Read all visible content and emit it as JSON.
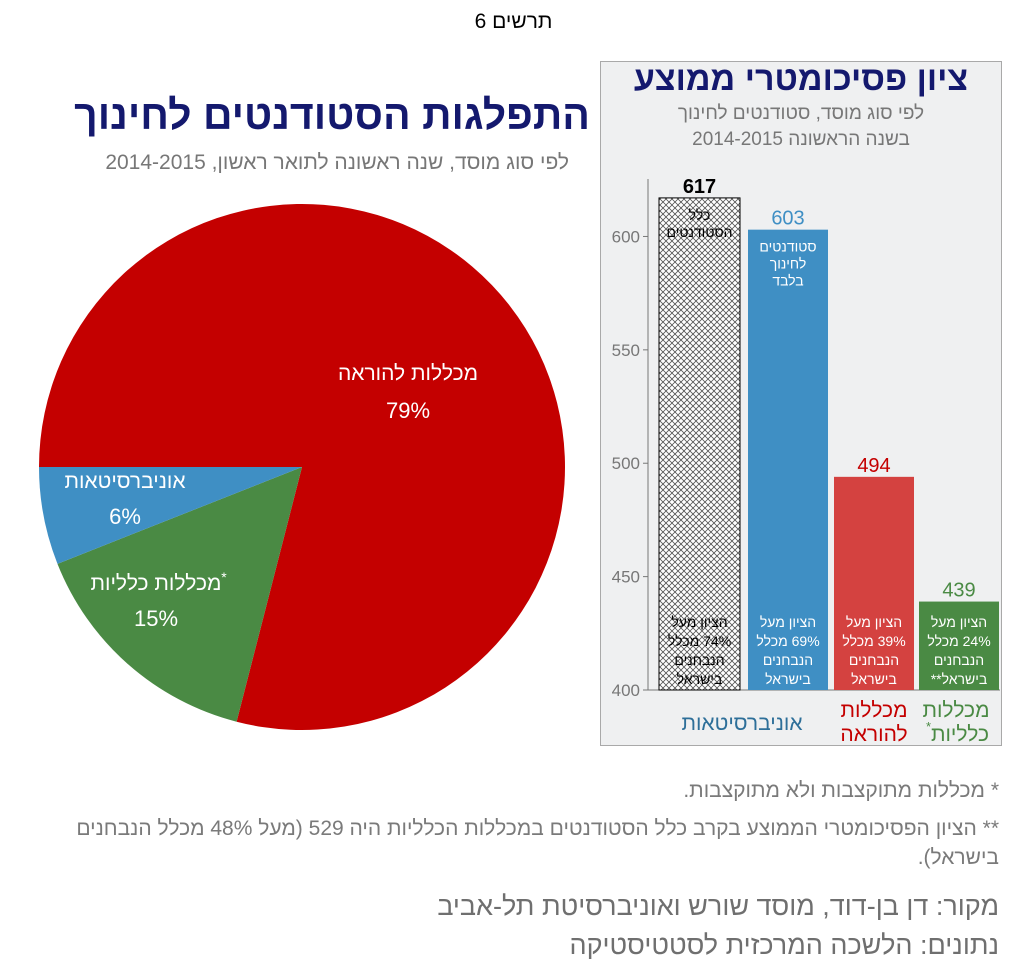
{
  "figure_label": "תרשים 6",
  "colors": {
    "teaching": "#c40000",
    "university": "#3f8fc4",
    "general": "#4a8a44",
    "teaching_bar": "#d44240",
    "title": "#14196e"
  },
  "chart_data": [
    {
      "type": "pie",
      "title": "התפלגות הסטודנטים לחינוך",
      "subtitle": "לפי סוג מוסד, שנה ראשונה לתואר ראשון, 2014-2015",
      "slices": [
        {
          "label": "מכללות להוראה",
          "value": 79,
          "value_label": "79%",
          "color": "#c40000"
        },
        {
          "label": "מכללות כלליות",
          "value": 15,
          "value_label": "15%",
          "color": "#4a8a44",
          "mark": "*"
        },
        {
          "label": "אוניברסיטאות",
          "value": 6,
          "value_label": "6%",
          "color": "#3f8fc4"
        }
      ]
    },
    {
      "type": "bar",
      "title": "ציון פסיכומטרי ממוצע",
      "subtitle": "לפי סוג מוסד, סטודנטים לחינוך\nבשנה הראשונה 2014-2015",
      "ylim": [
        400,
        630
      ],
      "yticks": [
        400,
        450,
        500,
        550,
        600
      ],
      "grid": false,
      "categories": [
        "אוניברסיטאות",
        "מכללות להוראה",
        "מכללות כלליות"
      ],
      "bars": [
        {
          "value": 617,
          "value_label": "617",
          "top_label": "כלל הסטודנטים",
          "bottom_label": "הציון מעל 74% מכלל הנבחנים בישראל",
          "style": "hatched",
          "color": "#000000"
        },
        {
          "value": 603,
          "value_label": "603",
          "top_label": "סטודנטים לחינוך בלבד",
          "bottom_label": "הציון מעל 69% מכלל הנבחנים בישראל",
          "style": "solid",
          "color": "#3f8fc4"
        },
        {
          "value": 494,
          "value_label": "494",
          "top_label": "",
          "bottom_label": "הציון מעל 39% מכלל הנבחנים בישראל",
          "style": "solid",
          "color": "#d44240"
        },
        {
          "value": 439,
          "value_label": "439",
          "top_label": "",
          "bottom_label": "הציון מעל 24% מכלל הנבחנים בישראל**",
          "style": "solid",
          "color": "#4a8a44"
        }
      ],
      "category_labels": [
        {
          "text": "אוניברסיטאות",
          "color": "#2e6f99"
        },
        {
          "text": "מכללות להוראה",
          "color": "#c40000"
        },
        {
          "text": "מכללות כלליות",
          "color": "#4a8a44",
          "mark": "*"
        }
      ]
    }
  ],
  "notes": {
    "note1": "* מכללות מתוקצבות ולא מתוקצבות.",
    "note2": "** הציון הפסיכומטרי הממוצע בקרב כלל הסטודנטים במכללות הכלליות היה 529 (מעל 48% מכלל הנבחנים בישראל)."
  },
  "credits": {
    "source": "מקור: דן בן-דוד, מוסד שורש ואוניברסיטת תל-אביב",
    "data": "נתונים: הלשכה המרכזית לסטטיסטיקה"
  }
}
